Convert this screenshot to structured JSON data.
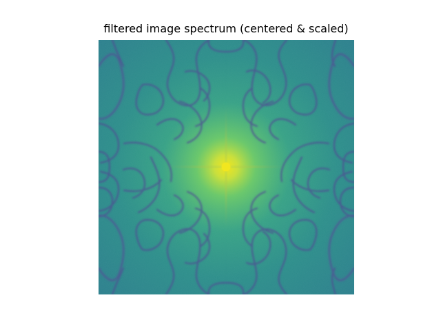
{
  "figure": {
    "title": "filtered image spectrum (centered & scaled)"
  },
  "colors": {
    "background": "#ffffff",
    "field": "#2a8f8b",
    "field_edge": "#2a7f8d",
    "center_glow": "#9bd84a",
    "center_peak": "#f2e61f",
    "mid_glow": "#48b57d",
    "contour": "#4f4f93",
    "contour_soft": "#5b6ea0"
  },
  "image": {
    "type": "spectrum-heatmap",
    "colormap": "viridis",
    "centered": true,
    "scaled": true,
    "features": [
      "bright-center-peak",
      "horizontal-axis-line",
      "vertical-axis-line",
      "purple-symmetric-contours"
    ]
  }
}
